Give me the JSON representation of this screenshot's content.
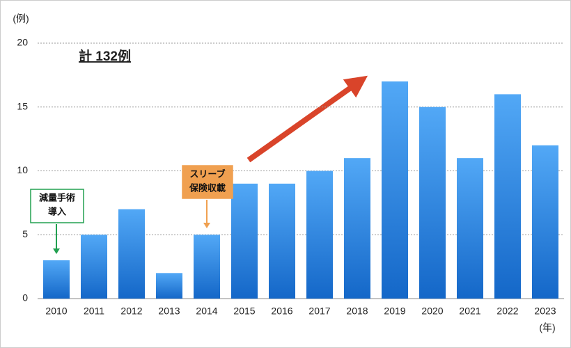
{
  "chart_data": {
    "type": "bar",
    "y_label": "(例)",
    "x_label": "(年)",
    "total_label": "計 132例",
    "categories": [
      "2010",
      "2011",
      "2012",
      "2013",
      "2014",
      "2015",
      "2016",
      "2017",
      "2018",
      "2019",
      "2020",
      "2021",
      "2022",
      "2023"
    ],
    "values": [
      3,
      5,
      7,
      2,
      5,
      9,
      9,
      10,
      11,
      17,
      15,
      11,
      16,
      12
    ],
    "color": "#52a8f6",
    "ylim": [
      0,
      20
    ],
    "yticks": [
      0,
      5,
      10,
      15,
      20
    ],
    "grid": true,
    "annotations": [
      {
        "lines": [
          "減量手術",
          "導入"
        ],
        "color": "#22a050"
      },
      {
        "lines": [
          "スリーブ",
          "保険収載"
        ],
        "color": "#f0a050"
      }
    ]
  }
}
